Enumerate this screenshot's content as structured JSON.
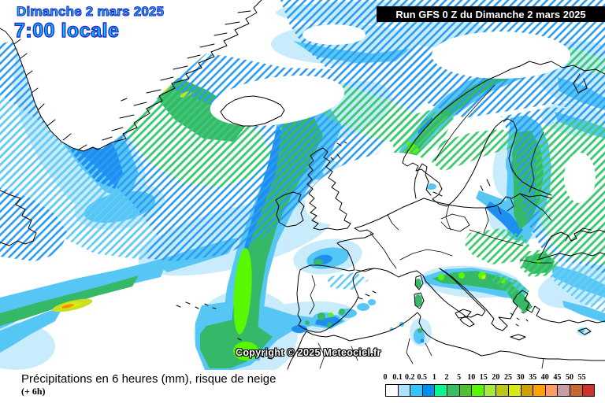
{
  "titles": {
    "date": "Dimanche 2 mars 2025",
    "time": "7:00 locale",
    "run": "Run GFS 0 Z du Dimanche 2 mars 2025"
  },
  "map": {
    "copyright": "Copyright © 2025 Meteociel.fr",
    "description": "GFS precipitation map over the North Atlantic and Europe, hatched areas indicate snow risk"
  },
  "caption": {
    "line1": "Précipitations en 6 heures (mm), risque de neige",
    "line2": "(+ 6h)"
  },
  "legend": {
    "unit": "mm",
    "ticks": [
      "0",
      "0.1",
      "0.2",
      "0.5",
      "1",
      "2",
      "5",
      "10",
      "15",
      "20",
      "25",
      "30",
      "35",
      "40",
      "45",
      "50",
      "55"
    ],
    "colors": [
      "#ffffff",
      "#a8e4fa",
      "#30c8f8",
      "#0090f0",
      "#00f890",
      "#38c060",
      "#50c030",
      "#58f800",
      "#a8e838",
      "#bcc818",
      "#d8e818",
      "#d0a000",
      "#ffa000",
      "#ff9c66",
      "#c89ca0",
      "#c86830",
      "#cc3030"
    ]
  },
  "palette": {
    "title_fill": "#00c8ff",
    "title_outline": "#2a28c8",
    "run_bg": "#000000",
    "run_fg": "#ffffff",
    "hatch_blue": "#2b9cf2",
    "hatch_cyan": "#63cdf8",
    "hatch_green": "#3ecb6e",
    "precip_pale": "#c9ecfc",
    "precip_cyan": "#56c6f5",
    "precip_blue": "#1e8ef0",
    "precip_green": "#35b868",
    "precip_bright_green": "#58f800",
    "precip_yellow_green": "#c8e020",
    "precip_yellow": "#d8e818",
    "precip_orange": "#ff8c00",
    "coastline": "#000000"
  }
}
